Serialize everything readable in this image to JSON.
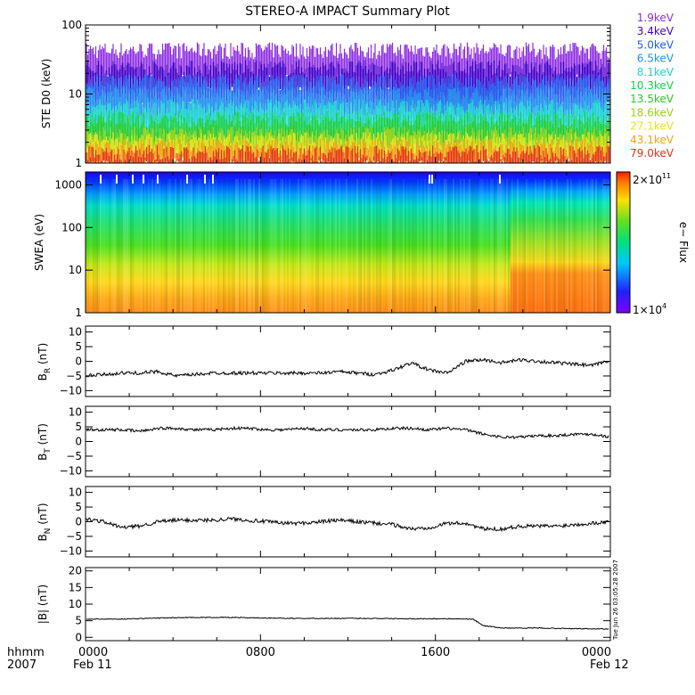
{
  "title": "STEREO-A IMPACT Summary Plot",
  "footer": {
    "row_label_1": "hhmm",
    "row_label_2": "2007",
    "date_left": "Feb 11",
    "date_right": "Feb 12",
    "time_ticks": [
      "0000",
      "0800",
      "1600",
      "0000"
    ],
    "timestamp": "Tue Jun 26 03:05:28 2007"
  },
  "colorbar": {
    "label": "e− Flux",
    "max_label_base": "2×10",
    "max_label_exp": "11",
    "min_label_base": "1×10",
    "min_label_exp": "4"
  },
  "chart_data": [
    {
      "type": "line",
      "panel": "ste",
      "ylabel": "STE D0 (keV)",
      "yscale": "log",
      "ylim": [
        1,
        100
      ],
      "yticks": [
        "100",
        "10",
        "1"
      ],
      "legend_placement": "right",
      "series": [
        {
          "name": "1.9keV",
          "color": "#8b2be2"
        },
        {
          "name": "3.4keV",
          "color": "#3f00c8"
        },
        {
          "name": "5.0keV",
          "color": "#1e5cf0"
        },
        {
          "name": "6.5keV",
          "color": "#1e90f0"
        },
        {
          "name": "8.1keV",
          "color": "#18d8d0"
        },
        {
          "name": "10.3keV",
          "color": "#14d24a"
        },
        {
          "name": "13.5keV",
          "color": "#28c828"
        },
        {
          "name": "18.6keV",
          "color": "#9ad214"
        },
        {
          "name": "27.1keV",
          "color": "#e6e614"
        },
        {
          "name": "43.1keV",
          "color": "#f5a014"
        },
        {
          "name": "79.0keV",
          "color": "#e63214"
        }
      ]
    },
    {
      "type": "heatmap",
      "panel": "swea",
      "ylabel": "SWEA (eV)",
      "yscale": "log",
      "ylim": [
        1,
        2000
      ],
      "yticks": [
        "1000",
        "100",
        "10",
        "1"
      ]
    },
    {
      "type": "line",
      "panel": "br",
      "ylabel_main": "B",
      "ylabel_sub": "R",
      "ylabel_unit": " (nT)",
      "ylim": [
        -12,
        12
      ],
      "yticks": [
        "10",
        "5",
        "0",
        "−5",
        "−10"
      ],
      "keypoints": [
        [
          0,
          -5
        ],
        [
          1,
          -4.5
        ],
        [
          2,
          -4
        ],
        [
          3,
          -4
        ],
        [
          4,
          -3.5
        ],
        [
          5,
          -5
        ],
        [
          6,
          -4.5
        ],
        [
          7,
          -4
        ],
        [
          8,
          -4
        ],
        [
          9,
          -4
        ],
        [
          10,
          -4
        ],
        [
          11,
          -4
        ],
        [
          12,
          -4
        ],
        [
          13,
          -4
        ],
        [
          14,
          -3.5
        ],
        [
          15,
          -4
        ],
        [
          16,
          -4.5
        ],
        [
          17,
          -3
        ],
        [
          18,
          -0.5
        ],
        [
          19,
          -3
        ],
        [
          20,
          -4
        ],
        [
          21,
          0
        ],
        [
          22,
          0.5
        ],
        [
          23,
          -0.5
        ],
        [
          24,
          0.5
        ],
        [
          25,
          0
        ],
        [
          26,
          -0.5
        ],
        [
          27,
          -1
        ],
        [
          28,
          -1.5
        ],
        [
          29,
          0.5
        ]
      ]
    },
    {
      "type": "line",
      "panel": "bt",
      "ylabel_main": "B",
      "ylabel_sub": "T",
      "ylabel_unit": " (nT)",
      "ylim": [
        -12,
        12
      ],
      "yticks": [
        "10",
        "5",
        "0",
        "−5",
        "−10"
      ],
      "keypoints": [
        [
          0,
          4
        ],
        [
          1,
          4
        ],
        [
          2,
          4
        ],
        [
          3,
          3.5
        ],
        [
          4,
          4.5
        ],
        [
          5,
          4.5
        ],
        [
          6,
          4
        ],
        [
          7,
          4
        ],
        [
          8,
          4.5
        ],
        [
          9,
          4.5
        ],
        [
          10,
          4
        ],
        [
          11,
          4
        ],
        [
          12,
          4.5
        ],
        [
          13,
          4
        ],
        [
          14,
          4
        ],
        [
          15,
          4
        ],
        [
          16,
          4
        ],
        [
          17,
          4.5
        ],
        [
          18,
          4.5
        ],
        [
          19,
          4
        ],
        [
          20,
          4.5
        ],
        [
          21,
          4
        ],
        [
          22,
          2.5
        ],
        [
          23,
          1.5
        ],
        [
          24,
          1.5
        ],
        [
          25,
          2
        ],
        [
          26,
          2
        ],
        [
          27,
          2.5
        ],
        [
          28,
          2.5
        ],
        [
          29,
          1.5
        ]
      ]
    },
    {
      "type": "line",
      "panel": "bn",
      "ylabel_main": "B",
      "ylabel_sub": "N",
      "ylabel_unit": " (nT)",
      "ylim": [
        -12,
        12
      ],
      "yticks": [
        "10",
        "5",
        "0",
        "−5",
        "−10"
      ],
      "keypoints": [
        [
          0,
          1
        ],
        [
          1,
          0
        ],
        [
          2,
          -2
        ],
        [
          3,
          -1.5
        ],
        [
          4,
          0
        ],
        [
          5,
          0.5
        ],
        [
          6,
          0.5
        ],
        [
          7,
          0.5
        ],
        [
          8,
          1
        ],
        [
          9,
          0.5
        ],
        [
          10,
          0
        ],
        [
          11,
          -0.5
        ],
        [
          12,
          -0.5
        ],
        [
          13,
          0
        ],
        [
          14,
          0.5
        ],
        [
          15,
          0
        ],
        [
          16,
          -0.5
        ],
        [
          17,
          -1
        ],
        [
          18,
          -2.5
        ],
        [
          19,
          -2
        ],
        [
          20,
          -0.5
        ],
        [
          21,
          -0.5
        ],
        [
          22,
          -2.5
        ],
        [
          23,
          -2.5
        ],
        [
          24,
          -1.5
        ],
        [
          25,
          -1.5
        ],
        [
          26,
          -1.5
        ],
        [
          27,
          -1
        ],
        [
          28,
          -0.5
        ],
        [
          29,
          0
        ]
      ]
    },
    {
      "type": "line",
      "panel": "b",
      "ylabel": "|B| (nT)",
      "ylim": [
        -1,
        21
      ],
      "yticks": [
        "20",
        "15",
        "10",
        "5",
        "0"
      ],
      "keypoints": [
        [
          0,
          5.5
        ],
        [
          2,
          5.5
        ],
        [
          4,
          5.8
        ],
        [
          6,
          6
        ],
        [
          8,
          6
        ],
        [
          10,
          5.8
        ],
        [
          12,
          5.7
        ],
        [
          14,
          5.7
        ],
        [
          16,
          5.7
        ],
        [
          18,
          5.6
        ],
        [
          20,
          5.6
        ],
        [
          21.4,
          5.5
        ],
        [
          22,
          3.5
        ],
        [
          23,
          2.8
        ],
        [
          25,
          2.8
        ],
        [
          27,
          2.6
        ],
        [
          29,
          2.5
        ]
      ]
    }
  ]
}
